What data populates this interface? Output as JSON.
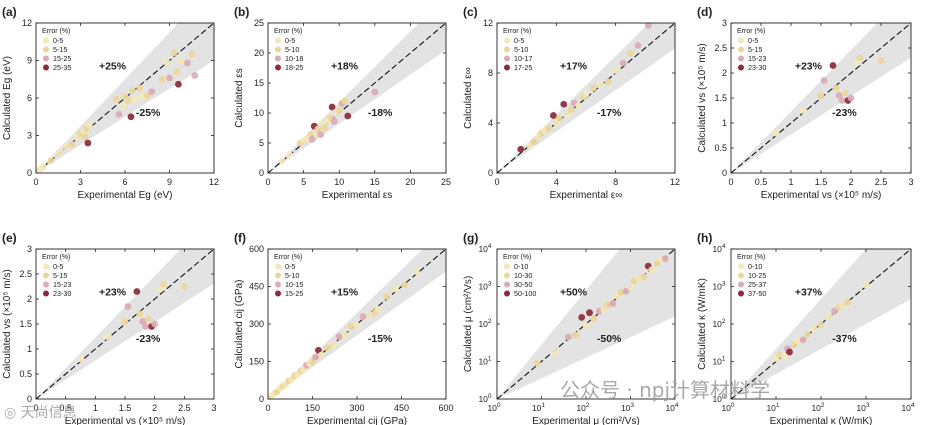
{
  "watermark": {
    "main": "公众号 · npj计算材料学",
    "corner": "◎ 天尚信息"
  },
  "chart_data": [
    {
      "id": "a",
      "panel_label": "(a)",
      "type": "scatter",
      "scale": "linear",
      "xlabel": "Experimental Eg (eV)",
      "ylabel": "Calculated Eg (eV)",
      "xlim": [
        0,
        12
      ],
      "ylim": [
        0,
        12
      ],
      "xticks": [
        0,
        3,
        6,
        9,
        12
      ],
      "yticks": [
        0,
        3,
        6,
        9,
        12
      ],
      "band_pct": 25,
      "band_labels": [
        "+25%",
        "-25%"
      ],
      "legend_title": "Error (%)",
      "legend": [
        "0-5",
        "5-15",
        "15-25",
        "25-35"
      ],
      "colors": [
        "#f4e8b8",
        "#ecd79a",
        "#dbaab6",
        "#8a2a3a"
      ],
      "points": [
        [
          0.1,
          0.1,
          0
        ],
        [
          0.2,
          0.2,
          0
        ],
        [
          0.3,
          0.3,
          0
        ],
        [
          0.5,
          0.5,
          0
        ],
        [
          1,
          1,
          1
        ],
        [
          1.5,
          1.6,
          0
        ],
        [
          2,
          2.1,
          0
        ],
        [
          2.4,
          2.3,
          1
        ],
        [
          2.8,
          2.9,
          0
        ],
        [
          3,
          3.2,
          1
        ],
        [
          3.2,
          3.3,
          0
        ],
        [
          3.3,
          2.9,
          1
        ],
        [
          3.4,
          3.6,
          1
        ],
        [
          3.5,
          2.4,
          3
        ],
        [
          3.6,
          3.8,
          0
        ],
        [
          5.4,
          5.9,
          1
        ],
        [
          5.6,
          4.7,
          2
        ],
        [
          5.8,
          5.4,
          0
        ],
        [
          6,
          6.1,
          1
        ],
        [
          6.2,
          5.8,
          1
        ],
        [
          6.4,
          4.5,
          3
        ],
        [
          6.5,
          6.6,
          1
        ],
        [
          6.7,
          5.9,
          0
        ],
        [
          7,
          6.8,
          1
        ],
        [
          7.2,
          6.1,
          0
        ],
        [
          7.5,
          6.2,
          1
        ],
        [
          7.8,
          6.5,
          2
        ],
        [
          8.5,
          7.5,
          1
        ],
        [
          8.8,
          8.9,
          0
        ],
        [
          9,
          7.6,
          2
        ],
        [
          9.3,
          9.6,
          1
        ],
        [
          9.5,
          8.1,
          1
        ],
        [
          9.6,
          7.1,
          3
        ],
        [
          9.8,
          9,
          0
        ],
        [
          10.2,
          8.8,
          2
        ],
        [
          10.5,
          9.5,
          1
        ],
        [
          10.7,
          7.8,
          2
        ]
      ]
    },
    {
      "id": "b",
      "panel_label": "(b)",
      "type": "scatter",
      "scale": "linear",
      "xlabel": "Experimental εs",
      "ylabel": "Calculated εs",
      "xlim": [
        0,
        25
      ],
      "ylim": [
        0,
        25
      ],
      "xticks": [
        0,
        5,
        10,
        15,
        20,
        25
      ],
      "yticks": [
        0,
        5,
        10,
        15,
        20,
        25
      ],
      "band_pct": 18,
      "band_labels": [
        "+18%",
        "-18%"
      ],
      "legend_title": "Error (%)",
      "legend": [
        "0-5",
        "5-10",
        "10-18",
        "18-25"
      ],
      "colors": [
        "#f4e8b8",
        "#ecd79a",
        "#dbaab6",
        "#8a2a3a"
      ],
      "points": [
        [
          2,
          2,
          0
        ],
        [
          3,
          3.1,
          0
        ],
        [
          4.5,
          5,
          1
        ],
        [
          5,
          5.4,
          0
        ],
        [
          5.5,
          5.8,
          0
        ],
        [
          6,
          6.4,
          1
        ],
        [
          6.2,
          5.6,
          2
        ],
        [
          6.5,
          7.8,
          3
        ],
        [
          6.8,
          6.6,
          0
        ],
        [
          7,
          7.3,
          1
        ],
        [
          7.4,
          6.4,
          2
        ],
        [
          7.8,
          8.2,
          0
        ],
        [
          8,
          7.5,
          1
        ],
        [
          8.3,
          8.8,
          0
        ],
        [
          8.8,
          9.2,
          1
        ],
        [
          9,
          11,
          3
        ],
        [
          9.3,
          8.6,
          2
        ],
        [
          9.6,
          10.2,
          0
        ],
        [
          10,
          10.5,
          1
        ],
        [
          10.4,
          11.6,
          2
        ],
        [
          10.8,
          12,
          1
        ],
        [
          11.2,
          9.5,
          3
        ],
        [
          15,
          13.5,
          2
        ]
      ]
    },
    {
      "id": "c",
      "panel_label": "(c)",
      "type": "scatter",
      "scale": "linear",
      "xlabel": "Experimental ε∞",
      "ylabel": "Calculated ε∞",
      "xlim": [
        0,
        12
      ],
      "ylim": [
        0,
        12
      ],
      "xticks": [
        0,
        4,
        8,
        12
      ],
      "yticks": [
        0,
        4,
        8,
        12
      ],
      "band_pct": 17,
      "band_labels": [
        "+17%",
        "-17%"
      ],
      "legend_title": "Error (%)",
      "legend": [
        "0-5",
        "5-10",
        "10-17",
        "17-25"
      ],
      "colors": [
        "#f4e8b8",
        "#ecd79a",
        "#dbaab6",
        "#8a2a3a"
      ],
      "points": [
        [
          1.6,
          1.9,
          3
        ],
        [
          2.2,
          2.2,
          0
        ],
        [
          2.5,
          2.5,
          1
        ],
        [
          2.8,
          2.9,
          0
        ],
        [
          3,
          3.2,
          1
        ],
        [
          3.2,
          3.4,
          0
        ],
        [
          3.5,
          3.6,
          1
        ],
        [
          3.8,
          4.6,
          3
        ],
        [
          4,
          4,
          0
        ],
        [
          4.2,
          4.4,
          1
        ],
        [
          4.5,
          5.5,
          3
        ],
        [
          4.8,
          4.7,
          0
        ],
        [
          5,
          5.1,
          1
        ],
        [
          5.2,
          5.6,
          2
        ],
        [
          5.5,
          5.4,
          0
        ],
        [
          5.8,
          6.1,
          1
        ],
        [
          6,
          6.3,
          0
        ],
        [
          6.5,
          6.8,
          1
        ],
        [
          7,
          7.1,
          0
        ],
        [
          7.5,
          7.3,
          1
        ],
        [
          8,
          8.2,
          0
        ],
        [
          8.5,
          8.8,
          2
        ],
        [
          9,
          9.6,
          1
        ],
        [
          9.5,
          10.2,
          2
        ],
        [
          10.2,
          11.8,
          2
        ]
      ]
    },
    {
      "id": "d",
      "panel_label": "(d)",
      "type": "scatter",
      "scale": "linear",
      "xlabel": "Experimental vs (×10⁵ m/s)",
      "ylabel": "Calculated vs (×10⁵ m/s)",
      "xlim": [
        0,
        3
      ],
      "ylim": [
        0,
        3
      ],
      "xticks": [
        0.0,
        0.5,
        1.0,
        1.5,
        2.0,
        2.5,
        3.0
      ],
      "yticks": [
        0.0,
        0.5,
        1.0,
        1.5,
        2.0,
        2.5,
        3.0
      ],
      "band_pct": 23,
      "band_labels": [
        "+23%",
        "-23%"
      ],
      "legend_title": "Error (%)",
      "legend": [
        "0-5",
        "5-15",
        "15-23",
        "23-30"
      ],
      "colors": [
        "#f4e8b8",
        "#ecd79a",
        "#dbaab6",
        "#8a2a3a"
      ],
      "points": [
        [
          0.75,
          0.8,
          0
        ],
        [
          1.2,
          1.25,
          0
        ],
        [
          1.5,
          1.55,
          1
        ],
        [
          1.55,
          1.85,
          2
        ],
        [
          1.7,
          2.15,
          3
        ],
        [
          1.75,
          1.7,
          1
        ],
        [
          1.8,
          1.55,
          2
        ],
        [
          1.85,
          1.45,
          2
        ],
        [
          1.9,
          1.6,
          1
        ],
        [
          1.95,
          1.45,
          3
        ],
        [
          2.0,
          1.5,
          2
        ],
        [
          2.1,
          2.2,
          0
        ],
        [
          2.15,
          2.3,
          1
        ],
        [
          2.5,
          2.25,
          1
        ]
      ]
    },
    {
      "id": "e",
      "panel_label": "(e)",
      "type": "scatter",
      "scale": "linear",
      "xlabel": "Experimental vs (×10⁵ m/s)",
      "ylabel": "Calculated vs (×10⁵ m/s)",
      "xlim": [
        0,
        3
      ],
      "ylim": [
        0,
        3
      ],
      "xticks": [
        0.0,
        0.5,
        1.0,
        1.5,
        2.0,
        2.5,
        3.0
      ],
      "yticks": [
        0.0,
        0.5,
        1.0,
        1.5,
        2.0,
        2.5,
        3.0
      ],
      "band_pct": 23,
      "band_labels": [
        "+23%",
        "-23%"
      ],
      "legend_title": "Error (%)",
      "legend": [
        "0-5",
        "5-15",
        "15-23",
        "23-30"
      ],
      "colors": [
        "#f4e8b8",
        "#ecd79a",
        "#dbaab6",
        "#8a2a3a"
      ],
      "points": [
        [
          0.75,
          0.8,
          0
        ],
        [
          1.2,
          1.25,
          0
        ],
        [
          1.5,
          1.55,
          1
        ],
        [
          1.55,
          1.85,
          2
        ],
        [
          1.7,
          2.15,
          3
        ],
        [
          1.75,
          1.7,
          1
        ],
        [
          1.8,
          1.55,
          2
        ],
        [
          1.85,
          1.45,
          2
        ],
        [
          1.9,
          1.6,
          1
        ],
        [
          1.95,
          1.45,
          3
        ],
        [
          2.0,
          1.5,
          2
        ],
        [
          2.1,
          2.2,
          0
        ],
        [
          2.15,
          2.3,
          1
        ],
        [
          2.5,
          2.25,
          1
        ]
      ]
    },
    {
      "id": "f",
      "panel_label": "(f)",
      "type": "scatter",
      "scale": "linear",
      "xlabel": "Experimental cij (GPa)",
      "ylabel": "Calculated cij (GPa)",
      "xlim": [
        0,
        600
      ],
      "ylim": [
        0,
        600
      ],
      "xticks": [
        0,
        150,
        300,
        450,
        600
      ],
      "yticks": [
        0,
        150,
        300,
        450,
        600
      ],
      "band_pct": 15,
      "band_labels": [
        "+15%",
        "-15%"
      ],
      "legend_title": "Error (%)",
      "legend": [
        "0-5",
        "5-10",
        "10-15",
        "15-25"
      ],
      "colors": [
        "#f4e8b8",
        "#ecd79a",
        "#dbaab6",
        "#8a2a3a"
      ],
      "points": [
        [
          10,
          10,
          0
        ],
        [
          20,
          22,
          0
        ],
        [
          30,
          28,
          1
        ],
        [
          40,
          42,
          0
        ],
        [
          50,
          52,
          1
        ],
        [
          60,
          58,
          0
        ],
        [
          70,
          73,
          1
        ],
        [
          80,
          78,
          0
        ],
        [
          90,
          95,
          1
        ],
        [
          100,
          98,
          0
        ],
        [
          110,
          113,
          1
        ],
        [
          120,
          118,
          0
        ],
        [
          130,
          136,
          2
        ],
        [
          140,
          142,
          0
        ],
        [
          150,
          148,
          1
        ],
        [
          160,
          168,
          2
        ],
        [
          170,
          195,
          3
        ],
        [
          180,
          176,
          0
        ],
        [
          200,
          205,
          1
        ],
        [
          220,
          215,
          0
        ],
        [
          240,
          250,
          2
        ],
        [
          260,
          256,
          0
        ],
        [
          280,
          290,
          1
        ],
        [
          300,
          295,
          0
        ],
        [
          320,
          330,
          2
        ],
        [
          340,
          335,
          0
        ],
        [
          360,
          345,
          1
        ],
        [
          370,
          360,
          0
        ],
        [
          400,
          410,
          1
        ],
        [
          430,
          440,
          0
        ],
        [
          460,
          455,
          1
        ],
        [
          500,
          510,
          0
        ]
      ]
    },
    {
      "id": "g",
      "panel_label": "(g)",
      "type": "scatter",
      "scale": "log",
      "xlabel": "Experimental μ (cm²/Vs)",
      "ylabel": "Calculated μ (cm²/Vs)",
      "xlim": [
        1,
        10000
      ],
      "ylim": [
        1,
        10000
      ],
      "xticks": [
        1,
        10,
        100,
        1000,
        10000
      ],
      "yticks": [
        1,
        10,
        100,
        1000,
        10000
      ],
      "band_pct": 50,
      "band_labels": [
        "+50%",
        "-50%"
      ],
      "legend_title": "Error (%)",
      "legend": [
        "0-10",
        "10-30",
        "30-50",
        "50-100"
      ],
      "colors": [
        "#f4e8b8",
        "#ecd79a",
        "#dbaab6",
        "#8a2a3a"
      ],
      "points": [
        [
          8,
          9,
          1
        ],
        [
          20,
          18,
          0
        ],
        [
          40,
          45,
          2
        ],
        [
          60,
          50,
          1
        ],
        [
          80,
          150,
          3
        ],
        [
          100,
          90,
          0
        ],
        [
          120,
          200,
          3
        ],
        [
          150,
          140,
          1
        ],
        [
          200,
          220,
          2
        ],
        [
          250,
          230,
          0
        ],
        [
          300,
          320,
          1
        ],
        [
          400,
          350,
          2
        ],
        [
          500,
          560,
          0
        ],
        [
          600,
          700,
          1
        ],
        [
          800,
          750,
          2
        ],
        [
          1000,
          950,
          0
        ],
        [
          1200,
          1400,
          1
        ],
        [
          1500,
          1600,
          0
        ],
        [
          2000,
          1800,
          1
        ],
        [
          2500,
          3500,
          3
        ],
        [
          3000,
          2800,
          0
        ],
        [
          4000,
          4200,
          1
        ],
        [
          5000,
          5200,
          0
        ],
        [
          6000,
          5500,
          2
        ]
      ]
    },
    {
      "id": "h",
      "panel_label": "(h)",
      "type": "scatter",
      "scale": "log",
      "xlabel": "Experimental κ (W/mK)",
      "ylabel": "Calculated κ (W/mK)",
      "xlim": [
        1,
        10000
      ],
      "ylim": [
        1,
        10000
      ],
      "xticks": [
        1,
        10,
        100,
        1000,
        10000
      ],
      "yticks": [
        1,
        10,
        100,
        1000,
        10000
      ],
      "band_pct": 37,
      "band_labels": [
        "+37%",
        "-37%"
      ],
      "legend_title": "Error (%)",
      "legend": [
        "0-10",
        "10-25",
        "25-37",
        "37-50"
      ],
      "colors": [
        "#f4e8b8",
        "#ecd79a",
        "#dbaab6",
        "#8a2a3a"
      ],
      "points": [
        [
          10,
          12,
          0
        ],
        [
          12,
          15,
          1
        ],
        [
          15,
          14,
          0
        ],
        [
          18,
          22,
          2
        ],
        [
          20,
          18,
          3
        ],
        [
          25,
          28,
          1
        ],
        [
          30,
          35,
          0
        ],
        [
          40,
          38,
          2
        ],
        [
          50,
          52,
          1
        ],
        [
          70,
          75,
          0
        ],
        [
          100,
          95,
          1
        ],
        [
          150,
          160,
          0
        ],
        [
          200,
          220,
          2
        ],
        [
          250,
          280,
          1
        ],
        [
          300,
          310,
          0
        ],
        [
          400,
          380,
          1
        ],
        [
          1000,
          1100,
          0
        ]
      ]
    }
  ]
}
